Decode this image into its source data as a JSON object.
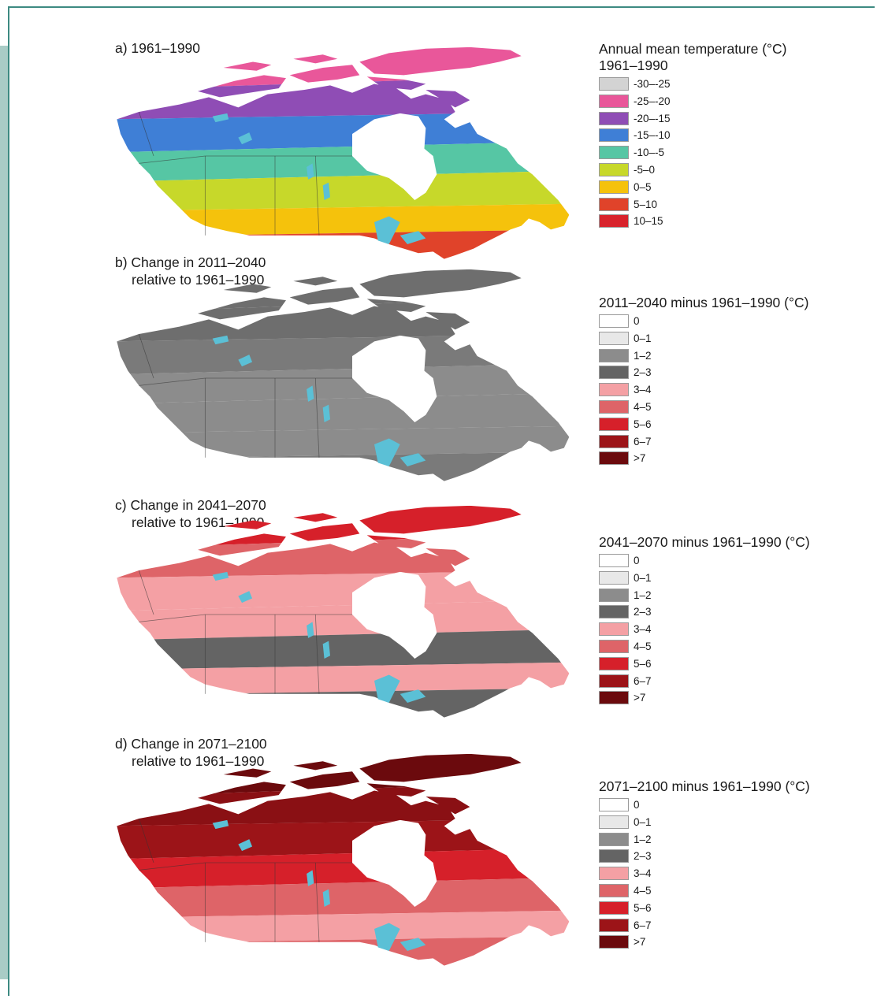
{
  "panels": [
    {
      "id": "a",
      "title_line1": "a) 1961–1990",
      "title_line2": "",
      "legend_title_line1": "Annual mean temperature (°C)",
      "legend_title_line2": "1961–1990",
      "legend": [
        {
          "label": "-30–-25",
          "color": "#d3d3d3"
        },
        {
          "label": "-25–-20",
          "color": "#e9579a"
        },
        {
          "label": "-20–-15",
          "color": "#8f4db5"
        },
        {
          "label": "-15–-10",
          "color": "#3f7fd6"
        },
        {
          "label": "-10–-5",
          "color": "#56c6a4"
        },
        {
          "label": "-5–0",
          "color": "#c7d82a"
        },
        {
          "label": "0–5",
          "color": "#f5c20c"
        },
        {
          "label": "5–10",
          "color": "#e0432a"
        },
        {
          "label": "10–15",
          "color": "#d8232c"
        }
      ],
      "map_zones": [
        "#e9579a",
        "#8f4db5",
        "#3f7fd6",
        "#56c6a4",
        "#c7d82a",
        "#f5c20c",
        "#e0432a"
      ]
    },
    {
      "id": "b",
      "title_line1": "b) Change in 2011–2040",
      "title_line2": "relative to 1961–1990",
      "legend_title_line1": "2011–2040 minus 1961–1990 (°C)",
      "legend_title_line2": "",
      "legend": [
        {
          "label": "0",
          "color": "#ffffff"
        },
        {
          "label": "0–1",
          "color": "#e8e8e8"
        },
        {
          "label": "1–2",
          "color": "#8c8c8c"
        },
        {
          "label": "2–3",
          "color": "#646464"
        },
        {
          "label": "3–4",
          "color": "#f4a0a4"
        },
        {
          "label": "4–5",
          "color": "#de6468"
        },
        {
          "label": "5–6",
          "color": "#d6202a"
        },
        {
          "label": "6–7",
          "color": "#9c1418"
        },
        {
          "label": ">7",
          "color": "#6b0a0d"
        }
      ],
      "map_zones": [
        "#6e6e6e",
        "#6e6e6e",
        "#7a7a7a",
        "#8c8c8c",
        "#8c8c8c",
        "#8c8c8c",
        "#7a7a7a"
      ]
    },
    {
      "id": "c",
      "title_line1": "c) Change in 2041–2070",
      "title_line2": "relative to 1961–1990",
      "legend_title_line1": "2041–2070 minus 1961–1990 (°C)",
      "legend_title_line2": "",
      "legend": [
        {
          "label": "0",
          "color": "#ffffff"
        },
        {
          "label": "0–1",
          "color": "#e8e8e8"
        },
        {
          "label": "1–2",
          "color": "#8c8c8c"
        },
        {
          "label": "2–3",
          "color": "#646464"
        },
        {
          "label": "3–4",
          "color": "#f4a0a4"
        },
        {
          "label": "4–5",
          "color": "#de6468"
        },
        {
          "label": "5–6",
          "color": "#d6202a"
        },
        {
          "label": "6–7",
          "color": "#9c1418"
        },
        {
          "label": ">7",
          "color": "#6b0a0d"
        }
      ],
      "map_zones": [
        "#d6202a",
        "#de6468",
        "#f4a0a4",
        "#f4a0a4",
        "#646464",
        "#f4a0a4",
        "#646464"
      ]
    },
    {
      "id": "d",
      "title_line1": "d) Change in 2071–2100",
      "title_line2": "relative to 1961–1990",
      "legend_title_line1": "2071–2100 minus 1961–1990 (°C)",
      "legend_title_line2": "",
      "legend": [
        {
          "label": "0",
          "color": "#ffffff"
        },
        {
          "label": "0–1",
          "color": "#e8e8e8"
        },
        {
          "label": "1–2",
          "color": "#8c8c8c"
        },
        {
          "label": "2–3",
          "color": "#646464"
        },
        {
          "label": "3–4",
          "color": "#f4a0a4"
        },
        {
          "label": "4–5",
          "color": "#de6468"
        },
        {
          "label": "5–6",
          "color": "#d6202a"
        },
        {
          "label": "6–7",
          "color": "#9c1418"
        },
        {
          "label": ">7",
          "color": "#6b0a0d"
        }
      ],
      "map_zones": [
        "#6b0a0d",
        "#8a1014",
        "#9c1418",
        "#d6202a",
        "#de6468",
        "#f4a0a4",
        "#de6468"
      ]
    }
  ],
  "colors": {
    "water": "#5bc0d6",
    "frame": "#3d8a82",
    "hudson_bay": "#ffffff"
  }
}
